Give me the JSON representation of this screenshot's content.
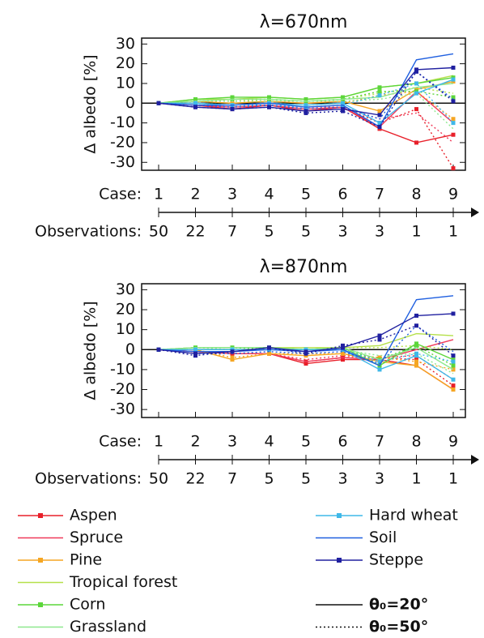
{
  "chart_data": [
    {
      "type": "line",
      "title": "λ=670nm",
      "ylabel": "Δ albedo [%]",
      "case_label": "Case:",
      "categories": [
        "1",
        "2",
        "3",
        "4",
        "5",
        "6",
        "7",
        "8",
        "9"
      ],
      "observations_label": "Observations:",
      "observations": [
        50,
        22,
        7,
        5,
        5,
        3,
        3,
        1,
        1
      ],
      "ylim": [
        -34,
        33
      ],
      "yticks": [
        -30,
        -20,
        -10,
        0,
        10,
        20,
        30
      ],
      "series": [
        {
          "color": "#e8202a",
          "marker": true,
          "dash": "solid",
          "values": [
            0,
            -1,
            -3,
            -1,
            -4,
            -2,
            -13,
            -20,
            -16
          ]
        },
        {
          "color": "#e8202a",
          "marker": true,
          "dash": "dotted",
          "values": [
            0,
            -1,
            -2,
            -1,
            -3,
            -2,
            -10,
            -3,
            -33
          ]
        },
        {
          "color": "#f03a5a",
          "marker": false,
          "dash": "solid",
          "values": [
            0,
            -1,
            -2,
            -1,
            -3,
            -2,
            -12,
            6,
            -10
          ]
        },
        {
          "color": "#f03a5a",
          "marker": false,
          "dash": "dotted",
          "values": [
            0,
            -1,
            -2,
            -1,
            -2,
            -2,
            -8,
            -5,
            -20
          ]
        },
        {
          "color": "#f5a623",
          "marker": true,
          "dash": "solid",
          "values": [
            0,
            1,
            0,
            1,
            0,
            1,
            -4,
            7,
            11
          ]
        },
        {
          "color": "#f5a623",
          "marker": true,
          "dash": "dotted",
          "values": [
            0,
            0,
            -1,
            0,
            -1,
            0,
            4,
            6,
            -8
          ]
        },
        {
          "color": "#b5e04a",
          "marker": false,
          "dash": "solid",
          "values": [
            0,
            2,
            2,
            3,
            2,
            3,
            8,
            10,
            14
          ]
        },
        {
          "color": "#b5e04a",
          "marker": false,
          "dash": "dotted",
          "values": [
            0,
            1,
            1,
            2,
            1,
            2,
            5,
            8,
            5
          ]
        },
        {
          "color": "#5cd63a",
          "marker": true,
          "dash": "solid",
          "values": [
            0,
            2,
            3,
            3,
            2,
            3,
            8,
            10,
            13
          ]
        },
        {
          "color": "#5cd63a",
          "marker": true,
          "dash": "dotted",
          "values": [
            0,
            1,
            2,
            2,
            1,
            2,
            6,
            6,
            3
          ]
        },
        {
          "color": "#8ee88e",
          "marker": false,
          "dash": "solid",
          "values": [
            0,
            1,
            2,
            2,
            1,
            2,
            3,
            8,
            10
          ]
        },
        {
          "color": "#8ee88e",
          "marker": false,
          "dash": "dotted",
          "values": [
            0,
            1,
            1,
            1,
            1,
            1,
            2,
            5,
            -13
          ]
        },
        {
          "color": "#3fb8e8",
          "marker": true,
          "dash": "solid",
          "values": [
            0,
            0,
            -1,
            0,
            -1,
            0,
            -10,
            5,
            12
          ]
        },
        {
          "color": "#3fb8e8",
          "marker": true,
          "dash": "dotted",
          "values": [
            0,
            0,
            -1,
            -1,
            -2,
            -1,
            4,
            10,
            -10
          ]
        },
        {
          "color": "#2060e0",
          "marker": false,
          "dash": "solid",
          "values": [
            0,
            -1,
            -1,
            0,
            -2,
            -1,
            -12,
            22,
            25
          ]
        },
        {
          "color": "#2060e0",
          "marker": false,
          "dash": "dotted",
          "values": [
            0,
            -1,
            -2,
            -1,
            -3,
            -2,
            -8,
            16,
            2
          ]
        },
        {
          "color": "#2020a0",
          "marker": true,
          "dash": "solid",
          "values": [
            0,
            -2,
            -3,
            -2,
            -4,
            -3,
            -6,
            17,
            18
          ]
        },
        {
          "color": "#2020a0",
          "marker": true,
          "dash": "dotted",
          "values": [
            0,
            -2,
            -3,
            -2,
            -5,
            -4,
            -12,
            16,
            1
          ]
        }
      ]
    },
    {
      "type": "line",
      "title": "λ=870nm",
      "ylabel": "Δ albedo [%]",
      "case_label": "Case:",
      "categories": [
        "1",
        "2",
        "3",
        "4",
        "5",
        "6",
        "7",
        "8",
        "9"
      ],
      "observations_label": "Observations:",
      "observations": [
        50,
        22,
        7,
        5,
        5,
        3,
        3,
        1,
        1
      ],
      "ylim": [
        -34,
        33
      ],
      "yticks": [
        -30,
        -20,
        -10,
        0,
        10,
        20,
        30
      ],
      "series": [
        {
          "color": "#e8202a",
          "marker": true,
          "dash": "solid",
          "values": [
            0,
            -1,
            -2,
            -2,
            -7,
            -5,
            -5,
            -8,
            -20
          ]
        },
        {
          "color": "#e8202a",
          "marker": true,
          "dash": "dotted",
          "values": [
            0,
            -1,
            -2,
            -2,
            -6,
            -4,
            -4,
            -5,
            -18
          ]
        },
        {
          "color": "#f03a5a",
          "marker": false,
          "dash": "solid",
          "values": [
            0,
            -1,
            -2,
            -2,
            -6,
            -4,
            -5,
            0,
            5
          ]
        },
        {
          "color": "#f03a5a",
          "marker": false,
          "dash": "dotted",
          "values": [
            0,
            -1,
            -2,
            -2,
            -5,
            -3,
            -4,
            -3,
            -15
          ]
        },
        {
          "color": "#f5a623",
          "marker": true,
          "dash": "solid",
          "values": [
            0,
            0,
            -5,
            -2,
            -3,
            -2,
            -6,
            -8,
            -20
          ]
        },
        {
          "color": "#f5a623",
          "marker": true,
          "dash": "dotted",
          "values": [
            0,
            0,
            -4,
            -2,
            -2,
            -2,
            -4,
            -6,
            -10
          ]
        },
        {
          "color": "#b5e04a",
          "marker": false,
          "dash": "solid",
          "values": [
            0,
            1,
            1,
            1,
            1,
            1,
            2,
            8,
            7
          ]
        },
        {
          "color": "#b5e04a",
          "marker": false,
          "dash": "dotted",
          "values": [
            0,
            1,
            1,
            1,
            0,
            1,
            1,
            2,
            0
          ]
        },
        {
          "color": "#5cd63a",
          "marker": true,
          "dash": "solid",
          "values": [
            0,
            1,
            1,
            1,
            0,
            1,
            -8,
            3,
            -5
          ]
        },
        {
          "color": "#5cd63a",
          "marker": true,
          "dash": "dotted",
          "values": [
            0,
            1,
            1,
            0,
            0,
            0,
            -5,
            2,
            -8
          ]
        },
        {
          "color": "#8ee88e",
          "marker": false,
          "dash": "solid",
          "values": [
            0,
            1,
            1,
            1,
            0,
            1,
            -5,
            1,
            -10
          ]
        },
        {
          "color": "#8ee88e",
          "marker": false,
          "dash": "dotted",
          "values": [
            0,
            1,
            0,
            0,
            0,
            0,
            -3,
            -2,
            -12
          ]
        },
        {
          "color": "#3fb8e8",
          "marker": true,
          "dash": "solid",
          "values": [
            0,
            0,
            0,
            0,
            0,
            0,
            -10,
            -3,
            -15
          ]
        },
        {
          "color": "#3fb8e8",
          "marker": true,
          "dash": "dotted",
          "values": [
            0,
            0,
            0,
            0,
            0,
            0,
            -6,
            -2,
            -6
          ]
        },
        {
          "color": "#2060e0",
          "marker": false,
          "dash": "solid",
          "values": [
            0,
            -1,
            -1,
            0,
            -1,
            0,
            -8,
            25,
            27
          ]
        },
        {
          "color": "#2060e0",
          "marker": false,
          "dash": "dotted",
          "values": [
            0,
            -2,
            -2,
            -1,
            -2,
            -1,
            -7,
            12,
            -1
          ]
        },
        {
          "color": "#2020a0",
          "marker": true,
          "dash": "solid",
          "values": [
            0,
            -2,
            -1,
            1,
            -1,
            1,
            7,
            17,
            18
          ]
        },
        {
          "color": "#2020a0",
          "marker": true,
          "dash": "dotted",
          "values": [
            0,
            -3,
            -1,
            1,
            -2,
            2,
            5,
            12,
            -3
          ]
        }
      ]
    }
  ],
  "legend": {
    "entries": [
      {
        "name": "Aspen",
        "color": "#e8202a",
        "marker": true
      },
      {
        "name": "Spruce",
        "color": "#f03a5a",
        "marker": false
      },
      {
        "name": "Pine",
        "color": "#f5a623",
        "marker": true
      },
      {
        "name": "Tropical forest",
        "color": "#b5e04a",
        "marker": false
      },
      {
        "name": "Corn",
        "color": "#5cd63a",
        "marker": true
      },
      {
        "name": "Grassland",
        "color": "#8ee88e",
        "marker": false
      },
      {
        "name": "Hard wheat",
        "color": "#3fb8e8",
        "marker": true
      },
      {
        "name": "Soil",
        "color": "#2060e0",
        "marker": false
      },
      {
        "name": "Steppe",
        "color": "#2020a0",
        "marker": true
      }
    ],
    "styles": [
      {
        "label": "θ₀=20°",
        "dash": "solid"
      },
      {
        "label": "θ₀=50°",
        "dash": "dotted"
      }
    ]
  }
}
